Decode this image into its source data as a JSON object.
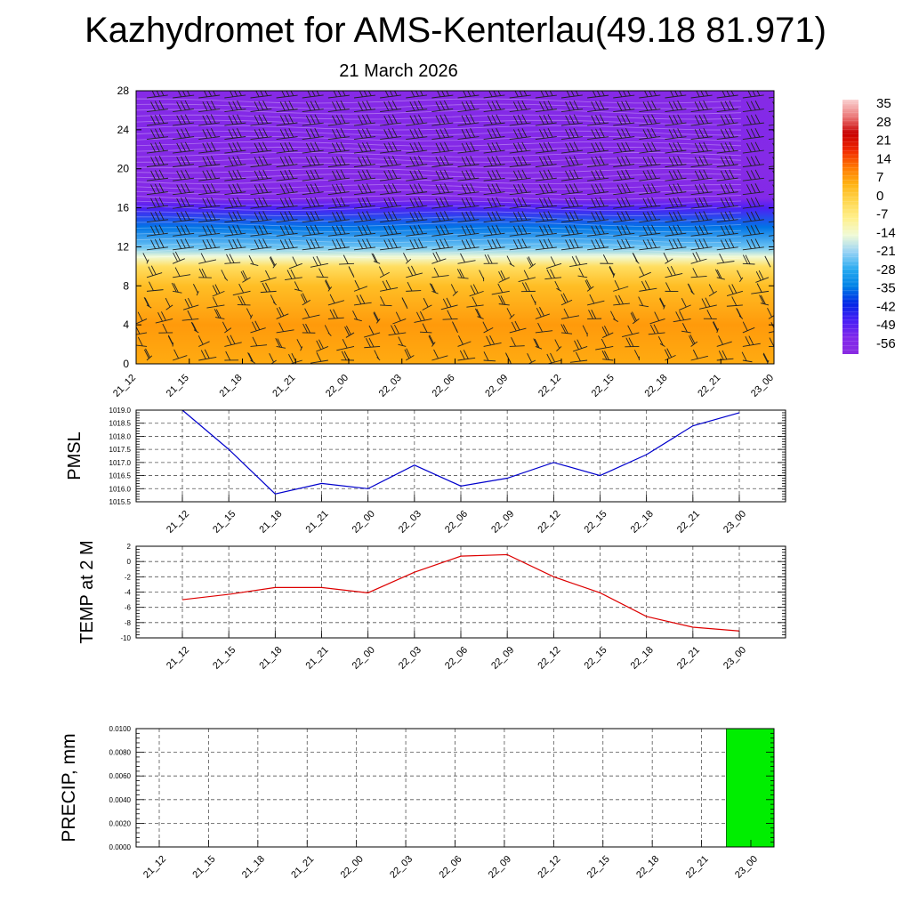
{
  "header": {
    "title": "Kazhydromet for AMS-Kenterlau(49.18 81.971)",
    "date": "21 March 2026"
  },
  "chart_data": [
    {
      "type": "heatmap",
      "name": "temperature-wind-cross-section",
      "x_labels": [
        "21_12",
        "21_15",
        "21_18",
        "21_21",
        "22_00",
        "22_03",
        "22_06",
        "22_09",
        "22_12",
        "22_15",
        "22_18",
        "22_21",
        "23_00"
      ],
      "y_ticks": [
        0,
        4,
        8,
        12,
        16,
        20,
        24,
        28
      ],
      "ylim": [
        0,
        28
      ],
      "temperature_by_level": [
        {
          "y": 0,
          "value": 8
        },
        {
          "y": 4,
          "value": 10
        },
        {
          "y": 8,
          "value": 5
        },
        {
          "y": 10,
          "value": -2
        },
        {
          "y": 11,
          "value": -14
        },
        {
          "y": 12,
          "value": -24
        },
        {
          "y": 14,
          "value": -36
        },
        {
          "y": 16,
          "value": -50
        },
        {
          "y": 17,
          "value": -58
        },
        {
          "y": 20,
          "value": -60
        },
        {
          "y": 24,
          "value": -58
        },
        {
          "y": 28,
          "value": -60
        }
      ],
      "colorbar": {
        "labels": [
          "35",
          "28",
          "21",
          "14",
          "7",
          "0",
          "-7",
          "-14",
          "-21",
          "-28",
          "-35",
          "-42",
          "-49",
          "-56"
        ]
      },
      "wind_barbs": true
    },
    {
      "type": "line",
      "ylabel": "PMSL",
      "x": [
        "21_12",
        "21_15",
        "21_18",
        "21_21",
        "22_00",
        "22_03",
        "22_06",
        "22_09",
        "22_12",
        "22_15",
        "22_18",
        "22_21",
        "23_00"
      ],
      "series": [
        {
          "color": "#0000cc",
          "values": [
            1019.0,
            1017.5,
            1015.8,
            1016.2,
            1016.0,
            1016.9,
            1016.1,
            1016.4,
            1017.0,
            1016.5,
            1017.3,
            1018.4,
            1018.9
          ]
        }
      ],
      "ylim": [
        1015.5,
        1019.0
      ],
      "yticks": [
        "1015.5",
        "1016.0",
        "1016.5",
        "1017.0",
        "1017.5",
        "1018.0",
        "1018.5",
        "1019.0"
      ],
      "grid": true
    },
    {
      "type": "line",
      "ylabel": "TEMP at 2 M",
      "x": [
        "21_12",
        "21_15",
        "21_18",
        "21_21",
        "22_00",
        "22_03",
        "22_06",
        "22_09",
        "22_12",
        "22_15",
        "22_18",
        "22_21",
        "23_00"
      ],
      "series": [
        {
          "color": "#dd0000",
          "values": [
            -5.0,
            -4.3,
            -3.4,
            -3.4,
            -4.1,
            -1.4,
            0.7,
            0.9,
            -2.0,
            -4.1,
            -7.2,
            -8.6,
            -9.1
          ]
        }
      ],
      "ylim": [
        -10,
        2
      ],
      "yticks": [
        "2",
        "0",
        "-2",
        "-4",
        "-6",
        "-8",
        "-10"
      ],
      "grid": true
    },
    {
      "type": "bar",
      "ylabel": "PRECIP, mm",
      "categories": [
        "21_12",
        "21_15",
        "21_18",
        "21_21",
        "22_00",
        "22_03",
        "22_06",
        "22_09",
        "22_12",
        "22_15",
        "22_18",
        "22_21",
        "23_00"
      ],
      "values": [
        0,
        0,
        0,
        0,
        0,
        0,
        0,
        0,
        0,
        0,
        0,
        0,
        0.01
      ],
      "bar_color": "#00ee00",
      "ylim": [
        0,
        0.01
      ],
      "yticks": [
        "0.0000",
        "0.0020",
        "0.0040",
        "0.0060",
        "0.0080",
        "0.0100"
      ],
      "grid": true
    }
  ]
}
